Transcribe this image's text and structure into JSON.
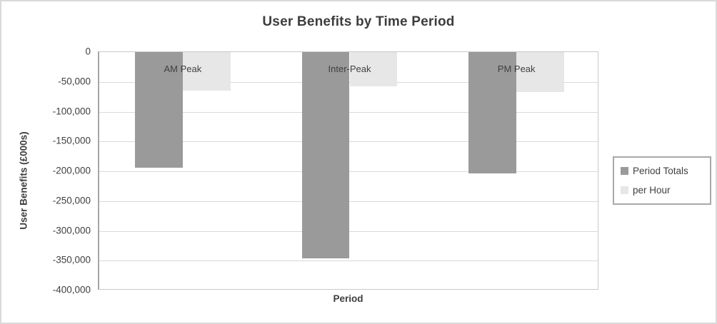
{
  "chart_data": {
    "type": "bar",
    "title": "User Benefits by Time Period",
    "xlabel": "Period",
    "ylabel": "User Benefits (£000s)",
    "categories": [
      "AM Peak",
      "Inter-Peak",
      "PM Peak"
    ],
    "series": [
      {
        "name": "Period Totals",
        "color": "#9a9a9a",
        "values": [
          -194000,
          -346000,
          -203000
        ]
      },
      {
        "name": "per Hour",
        "color": "#e7e7e7",
        "values": [
          -64700,
          -57700,
          -67500
        ]
      }
    ],
    "ylim": [
      -400000,
      0
    ],
    "ytick_step": 50000,
    "ytick_labels": [
      "0",
      "-50,000",
      "-100,000",
      "-150,000",
      "-200,000",
      "-250,000",
      "-300,000",
      "-350,000",
      "-400,000"
    ],
    "grid": true,
    "legend_position": "right",
    "bar_orientation": "vertical-negative"
  },
  "colors": {
    "text": "#404040",
    "gridline": "#d9d9d9",
    "axis_line": "#a6a6a6",
    "outer_border": "#d9d9d9"
  }
}
